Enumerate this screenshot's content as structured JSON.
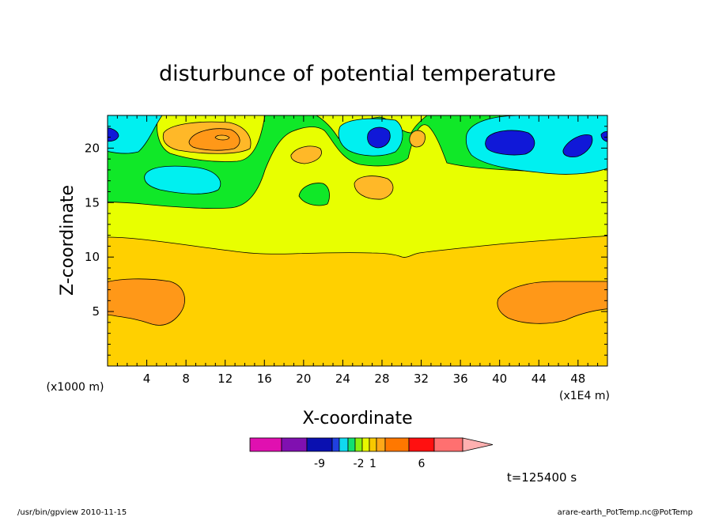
{
  "chart_data": {
    "type": "heatmap",
    "title": "disturbunce of potential temperature",
    "xlabel": "X-coordinate",
    "ylabel": "Z-coordinate",
    "x_unit_left": "(x1000 m)",
    "x_unit_right": "(x1E4 m)",
    "xlim": [
      0,
      51
    ],
    "ylim": [
      0,
      23
    ],
    "x_ticks": [
      4,
      8,
      12,
      16,
      20,
      24,
      28,
      32,
      36,
      40,
      44,
      48
    ],
    "y_ticks": [
      5,
      10,
      15,
      20
    ],
    "time_label": "t=125400 s",
    "colorbar": {
      "colors": [
        "#e010b0",
        "#8010b0",
        "#0a10b0",
        "#2040e0",
        "#10d8f0",
        "#10e070",
        "#88f010",
        "#e8f800",
        "#f8c800",
        "#ffa818",
        "#ff7800",
        "#ff1010",
        "#ff7070",
        "#ffb0b0"
      ],
      "labels": [
        {
          "value": "-9",
          "at": 2.5
        },
        {
          "value": "-2",
          "at": 6.5
        },
        {
          "value": "1",
          "at": 8.5
        },
        {
          "value": "6",
          "at": 11.5
        }
      ]
    },
    "palette": {
      "deep_blue": "#1018d8",
      "cyan": "#00f0f0",
      "green": "#10e828",
      "yellow": "#e8ff00",
      "gold": "#ffd000",
      "light_orange": "#ffb828",
      "orange": "#ff9818"
    }
  },
  "footer": {
    "left": "/usr/bin/gpview   2010-11-15",
    "right": "arare-earth_PotTemp.nc@PotTemp"
  }
}
